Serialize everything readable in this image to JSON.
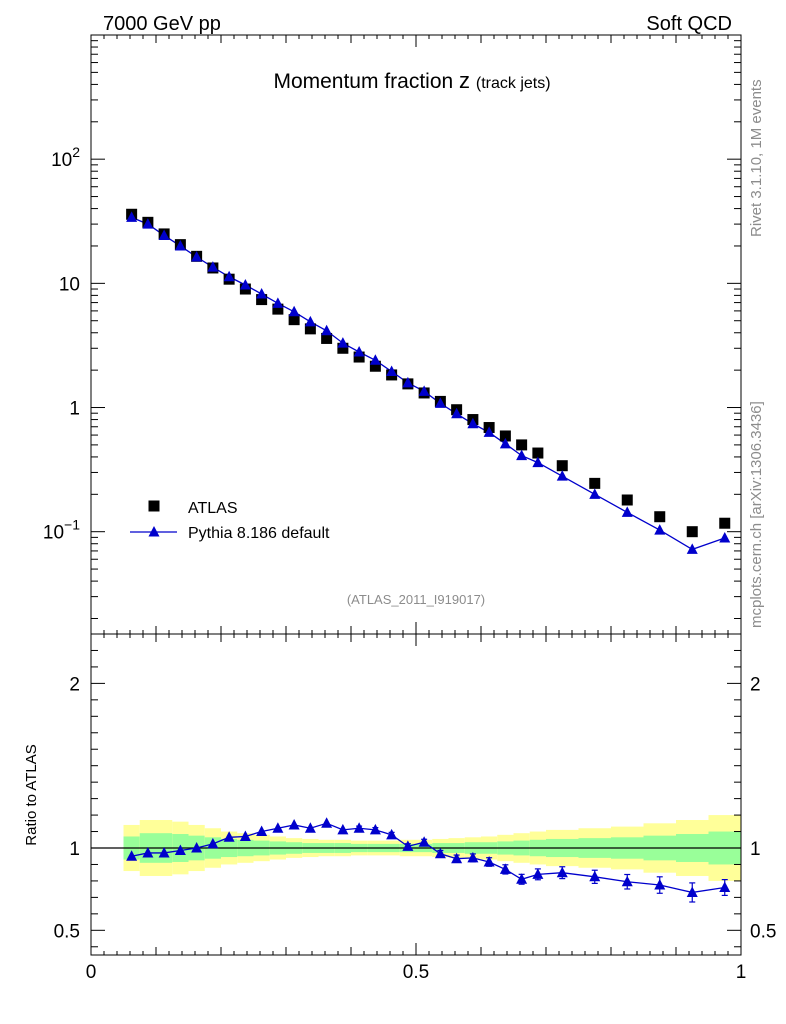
{
  "header": {
    "left_label": "7000 GeV pp",
    "right_label": "Soft QCD"
  },
  "side_labels": {
    "rivet": "Rivet 3.1.10,  1M events",
    "mcplots": "mcplots.cern.ch [arXiv:1306.3436]"
  },
  "colors": {
    "data": "#000000",
    "mc": "#0000cc",
    "band_inner": "#99ff99",
    "band_outer": "#ffff99",
    "analysis_label": "#8c8c8c"
  },
  "chart_data": [
    {
      "type": "scatter",
      "panel": "main",
      "title": "Momentum fraction",
      "title_symbol": "z",
      "title_subscript": "(track jets)",
      "analysis_label": "(ATLAS_2011_I919017)",
      "yscale": "log",
      "ylim": [
        0.015,
        1000
      ],
      "xlim": [
        0,
        1
      ],
      "ytick_labels": [
        {
          "value": 0.1,
          "base": "10",
          "exp": "−1"
        },
        {
          "value": 1,
          "base": "1",
          "exp": ""
        },
        {
          "value": 10,
          "base": "10",
          "exp": ""
        },
        {
          "value": 100,
          "base": "10",
          "exp": "2"
        }
      ],
      "legend_position": "lower-left",
      "x": [
        0.0625,
        0.0875,
        0.1125,
        0.1375,
        0.1625,
        0.1875,
        0.2125,
        0.2375,
        0.2625,
        0.2875,
        0.3125,
        0.3375,
        0.3625,
        0.3875,
        0.4125,
        0.4375,
        0.4625,
        0.4875,
        0.5125,
        0.5375,
        0.5625,
        0.5875,
        0.6125,
        0.6375,
        0.6625,
        0.6875,
        0.725,
        0.775,
        0.825,
        0.875,
        0.925,
        0.975
      ],
      "series": [
        {
          "name": "ATLAS",
          "marker": "square",
          "values": [
            36,
            31,
            25,
            20.5,
            16.5,
            13.3,
            10.8,
            9.0,
            7.4,
            6.2,
            5.1,
            4.3,
            3.6,
            3.0,
            2.55,
            2.15,
            1.83,
            1.55,
            1.31,
            1.12,
            0.96,
            0.8,
            0.69,
            0.59,
            0.5,
            0.43,
            0.34,
            0.245,
            0.18,
            0.132,
            0.1,
            0.117
          ]
        },
        {
          "name": "Pythia 8.186 default",
          "marker": "triangle",
          "values": [
            34,
            30,
            24.3,
            20,
            16.3,
            13.5,
            11.3,
            9.7,
            8.2,
            6.9,
            5.9,
            4.9,
            4.15,
            3.3,
            2.8,
            2.4,
            1.95,
            1.58,
            1.35,
            1.08,
            0.89,
            0.74,
            0.63,
            0.51,
            0.41,
            0.36,
            0.28,
            0.2,
            0.143,
            0.103,
            0.072,
            0.089
          ]
        }
      ]
    },
    {
      "type": "line",
      "panel": "ratio",
      "ylabel": "Ratio to ATLAS",
      "ylim": [
        0.35,
        2.3
      ],
      "xlim": [
        0,
        1
      ],
      "xtick_labels": [
        "0",
        "0.5",
        "1"
      ],
      "ytick_labels": [
        "0.5",
        "1",
        "2"
      ],
      "x": [
        0.0625,
        0.0875,
        0.1125,
        0.1375,
        0.1625,
        0.1875,
        0.2125,
        0.2375,
        0.2625,
        0.2875,
        0.3125,
        0.3375,
        0.3625,
        0.3875,
        0.4125,
        0.4375,
        0.4625,
        0.4875,
        0.5125,
        0.5375,
        0.5625,
        0.5875,
        0.6125,
        0.6375,
        0.6625,
        0.6875,
        0.725,
        0.775,
        0.825,
        0.875,
        0.925,
        0.975
      ],
      "bin_edges": [
        0.05,
        0.075,
        0.1,
        0.125,
        0.15,
        0.175,
        0.2,
        0.225,
        0.25,
        0.275,
        0.3,
        0.325,
        0.35,
        0.375,
        0.4,
        0.425,
        0.45,
        0.475,
        0.5,
        0.525,
        0.55,
        0.575,
        0.6,
        0.625,
        0.65,
        0.675,
        0.7,
        0.75,
        0.8,
        0.85,
        0.9,
        0.95,
        1.0
      ],
      "band_inner": [
        0.07,
        0.09,
        0.09,
        0.085,
        0.075,
        0.065,
        0.055,
        0.05,
        0.045,
        0.04,
        0.035,
        0.03,
        0.03,
        0.03,
        0.025,
        0.025,
        0.025,
        0.025,
        0.025,
        0.03,
        0.03,
        0.035,
        0.035,
        0.04,
        0.045,
        0.05,
        0.055,
        0.06,
        0.065,
        0.075,
        0.085,
        0.1
      ],
      "band_outer": [
        0.14,
        0.17,
        0.17,
        0.16,
        0.14,
        0.12,
        0.1,
        0.09,
        0.08,
        0.07,
        0.06,
        0.055,
        0.05,
        0.05,
        0.045,
        0.045,
        0.045,
        0.05,
        0.05,
        0.055,
        0.06,
        0.065,
        0.07,
        0.08,
        0.09,
        0.1,
        0.11,
        0.12,
        0.13,
        0.15,
        0.17,
        0.2
      ],
      "series": [
        {
          "name": "Pythia 8.186 default",
          "values": [
            0.95,
            0.97,
            0.97,
            0.985,
            1.0,
            1.025,
            1.065,
            1.07,
            1.1,
            1.12,
            1.14,
            1.12,
            1.15,
            1.11,
            1.12,
            1.11,
            1.08,
            1.01,
            1.035,
            0.965,
            0.935,
            0.94,
            0.915,
            0.87,
            0.81,
            0.84,
            0.85,
            0.825,
            0.795,
            0.775,
            0.73,
            0.76
          ],
          "errors": [
            0.005,
            0.005,
            0.005,
            0.005,
            0.005,
            0.005,
            0.006,
            0.006,
            0.007,
            0.008,
            0.009,
            0.01,
            0.011,
            0.012,
            0.013,
            0.014,
            0.015,
            0.016,
            0.018,
            0.02,
            0.022,
            0.024,
            0.026,
            0.028,
            0.03,
            0.033,
            0.036,
            0.04,
            0.044,
            0.05,
            0.058,
            0.048
          ]
        }
      ]
    }
  ]
}
